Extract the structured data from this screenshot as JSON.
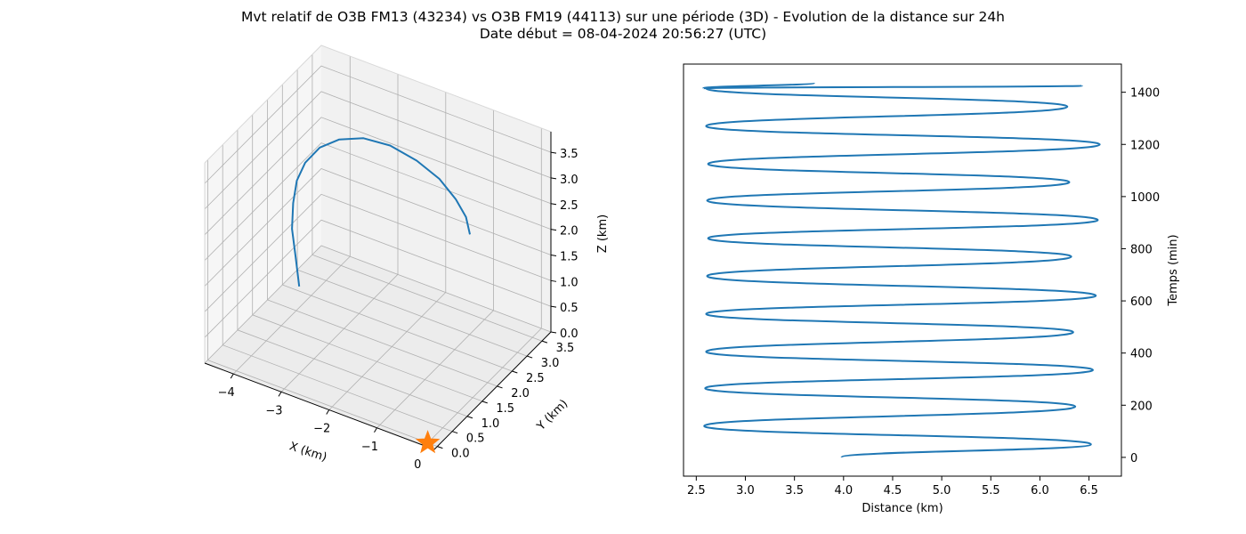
{
  "figure": {
    "title_line1": "Mvt relatif de O3B FM13 (43234) vs O3B FM19 (44113) sur une période (3D) - Evolution de la distance sur 24h",
    "title_line2": "Date début = 08-04-2024 20:56:27 (UTC)"
  },
  "colors": {
    "series": "#1f77b4",
    "marker": "#ff7f0e",
    "grid": "#b0b0b0",
    "pane": "#f2f2f2"
  },
  "chart_data": [
    {
      "type": "line",
      "projection": "3d",
      "title": "",
      "xlabel": "X (km)",
      "ylabel": "Y (km)",
      "zlabel": "Z (km)",
      "xlim": [
        -4.6,
        0.2
      ],
      "ylim": [
        -0.1,
        3.8
      ],
      "zlim": [
        0,
        3.9
      ],
      "xticks": [
        {
          "v": -4,
          "label": "−4"
        },
        {
          "v": -3,
          "label": "−3"
        },
        {
          "v": -2,
          "label": "−2"
        },
        {
          "v": -1,
          "label": "−1"
        },
        {
          "v": 0,
          "label": "0"
        }
      ],
      "yticks": [
        {
          "v": 0.0,
          "label": "0.0"
        },
        {
          "v": 0.5,
          "label": "0.5"
        },
        {
          "v": 1.0,
          "label": "1.0"
        },
        {
          "v": 1.5,
          "label": "1.5"
        },
        {
          "v": 2.0,
          "label": "2.0"
        },
        {
          "v": 2.5,
          "label": "2.5"
        },
        {
          "v": 3.0,
          "label": "3.0"
        },
        {
          "v": 3.5,
          "label": "3.5"
        }
      ],
      "zticks": [
        {
          "v": 0.0,
          "label": "0.0"
        },
        {
          "v": 0.5,
          "label": "0.5"
        },
        {
          "v": 1.0,
          "label": "1.0"
        },
        {
          "v": 1.5,
          "label": "1.5"
        },
        {
          "v": 2.0,
          "label": "2.0"
        },
        {
          "v": 2.5,
          "label": "2.5"
        },
        {
          "v": 3.0,
          "label": "3.0"
        },
        {
          "v": 3.5,
          "label": "3.5"
        }
      ],
      "grid": true,
      "series": [
        {
          "x": [
            -3.0,
            -3.2,
            -3.4,
            -3.5,
            -3.55,
            -3.5,
            -3.35,
            -3.1,
            -2.75,
            -2.35,
            -1.95,
            -1.6,
            -1.35,
            -1.2,
            -1.15
          ],
          "y": [
            0.5,
            0.7,
            0.9,
            1.1,
            1.3,
            1.5,
            1.75,
            2.0,
            2.25,
            2.5,
            2.75,
            2.95,
            3.1,
            3.2,
            3.25
          ],
          "z": [
            1.7,
            2.1,
            2.45,
            2.8,
            3.1,
            3.35,
            3.55,
            3.65,
            3.65,
            3.5,
            3.2,
            2.85,
            2.45,
            2.1,
            1.75
          ]
        }
      ],
      "markers": [
        {
          "x": 0,
          "y": 0,
          "z": 0,
          "shape": "star"
        }
      ]
    },
    {
      "type": "line",
      "title": "",
      "xlabel": "Distance (km)",
      "ylabel": "Temps (min)",
      "xlim": [
        2.37,
        6.83
      ],
      "ylim": [
        -72,
        1508
      ],
      "xticks": [
        {
          "v": 2.5,
          "label": "2.5"
        },
        {
          "v": 3.0,
          "label": "3.0"
        },
        {
          "v": 3.5,
          "label": "3.5"
        },
        {
          "v": 4.0,
          "label": "4.0"
        },
        {
          "v": 4.5,
          "label": "4.5"
        },
        {
          "v": 5.0,
          "label": "5.0"
        },
        {
          "v": 5.5,
          "label": "5.5"
        },
        {
          "v": 6.0,
          "label": "6.0"
        },
        {
          "v": 6.5,
          "label": "6.5"
        }
      ],
      "yticks": [
        {
          "v": 0,
          "label": "0"
        },
        {
          "v": 200,
          "label": "200"
        },
        {
          "v": 400,
          "label": "400"
        },
        {
          "v": 600,
          "label": "600"
        },
        {
          "v": 800,
          "label": "800"
        },
        {
          "v": 1000,
          "label": "1000"
        },
        {
          "v": 1200,
          "label": "1200"
        },
        {
          "v": 1400,
          "label": "1400"
        }
      ],
      "y_axis_side": "right",
      "grid": false,
      "series": [
        {
          "x": [
            3.98,
            6.52,
            2.58,
            6.36,
            2.59,
            6.54,
            2.6,
            6.34,
            2.6,
            6.57,
            2.61,
            6.32,
            2.62,
            6.59,
            2.61,
            6.3,
            2.62,
            6.61,
            2.6,
            6.28,
            2.6,
            6.43,
            2.57,
            3.7
          ],
          "y": [
            0,
            50,
            120,
            195,
            265,
            335,
            405,
            480,
            550,
            620,
            695,
            770,
            840,
            910,
            985,
            1055,
            1125,
            1200,
            1270,
            1345,
            1415,
            1425,
            1415,
            1436
          ]
        }
      ]
    }
  ]
}
